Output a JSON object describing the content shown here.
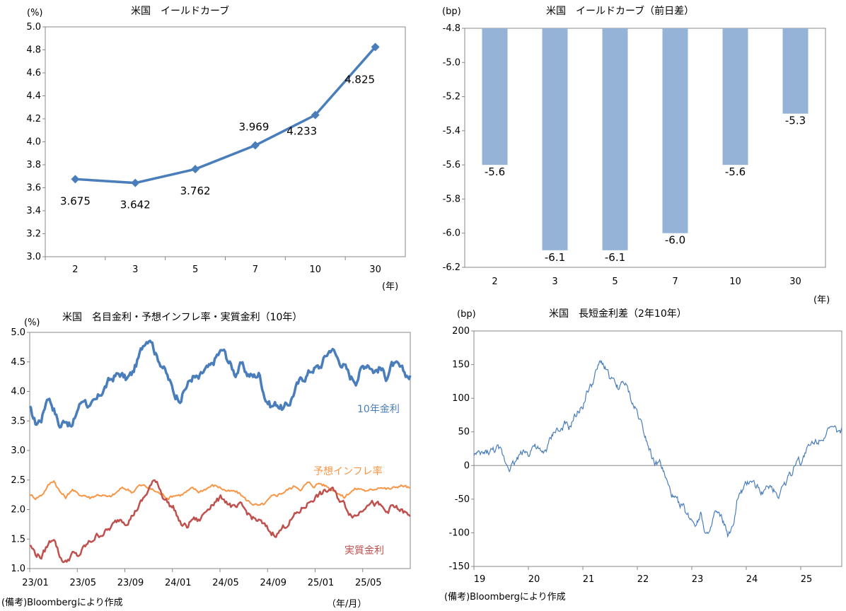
{
  "chart_data": [
    {
      "id": "yield-curve",
      "type": "line",
      "title": "米国　イールドカーブ",
      "unit_label": "(%)",
      "x_unit_label": "(年)",
      "categories": [
        "2",
        "3",
        "5",
        "7",
        "10",
        "30"
      ],
      "values": [
        3.675,
        3.642,
        3.762,
        3.969,
        4.233,
        4.825
      ],
      "data_labels": [
        "3.675",
        "3.642",
        "3.762",
        "3.969",
        "4.233",
        "4.825"
      ],
      "ylim": [
        3.0,
        5.0
      ],
      "yticks": [
        "3.0",
        "3.2",
        "3.4",
        "3.6",
        "3.8",
        "4.0",
        "4.2",
        "4.4",
        "4.6",
        "4.8",
        "5.0"
      ],
      "color": "#4a7ebb"
    },
    {
      "id": "yield-change",
      "type": "bar",
      "title": "米国　イールドカーブ（前日差）",
      "unit_label": "(bp)",
      "x_unit_label": "(年)",
      "categories": [
        "2",
        "3",
        "5",
        "7",
        "10",
        "30"
      ],
      "values": [
        -5.6,
        -6.1,
        -6.1,
        -6.0,
        -5.6,
        -5.3
      ],
      "data_labels": [
        "-5.6",
        "-6.1",
        "-6.1",
        "-6.0",
        "-5.6",
        "-5.3"
      ],
      "ylim": [
        -6.2,
        -4.8
      ],
      "yticks": [
        "-6.2",
        "-6.0",
        "-5.8",
        "-5.6",
        "-5.4",
        "-5.2",
        "-5.0",
        "-4.8"
      ],
      "color": "#95b3d7"
    },
    {
      "id": "rates-10y",
      "type": "line",
      "title": "米国　名目金利・予想インフレ率・実質金利（10年）",
      "unit_label": "(%)",
      "x_unit_label": "（年/月）",
      "xticks": [
        "23/01",
        "23/05",
        "23/09",
        "24/01",
        "24/05",
        "24/09",
        "25/01",
        "25/05"
      ],
      "ylim": [
        1.0,
        5.0
      ],
      "yticks": [
        "1.0",
        "1.5",
        "2.0",
        "2.5",
        "3.0",
        "3.5",
        "4.0",
        "4.5",
        "5.0"
      ],
      "series": [
        {
          "name": "10年金利",
          "color": "#4a7ebb",
          "anchors": [
            3.7,
            3.45,
            3.55,
            3.95,
            3.72,
            3.4,
            3.55,
            3.38,
            3.72,
            3.9,
            3.72,
            3.82,
            4.0,
            4.15,
            4.25,
            4.3,
            4.2,
            4.3,
            4.55,
            4.85,
            4.95,
            4.6,
            4.45,
            4.2,
            3.95,
            3.9,
            4.1,
            4.25,
            4.2,
            4.35,
            4.4,
            4.6,
            4.7,
            4.5,
            4.3,
            4.45,
            4.3,
            4.25,
            4.3,
            3.9,
            3.75,
            3.8,
            3.7,
            3.8,
            4.05,
            4.2,
            4.3,
            4.4,
            4.4,
            4.6,
            4.75,
            4.55,
            4.45,
            4.25,
            4.2,
            4.4,
            4.5,
            4.35,
            4.4,
            4.25,
            4.45,
            4.4,
            4.3,
            4.25
          ]
        },
        {
          "name": "予想インフレ率",
          "color": "#f79646",
          "anchors": [
            2.25,
            2.2,
            2.25,
            2.4,
            2.5,
            2.3,
            2.2,
            2.35,
            2.25,
            2.25,
            2.2,
            2.25,
            2.25,
            2.2,
            2.25,
            2.35,
            2.35,
            2.3,
            2.4,
            2.4,
            2.35,
            2.3,
            2.25,
            2.2,
            2.25,
            2.25,
            2.3,
            2.35,
            2.3,
            2.35,
            2.4,
            2.4,
            2.35,
            2.3,
            2.3,
            2.25,
            2.15,
            2.1,
            2.05,
            2.1,
            2.2,
            2.25,
            2.3,
            2.35,
            2.4,
            2.35,
            2.45,
            2.4,
            2.45,
            2.4,
            2.35,
            2.3,
            2.2,
            2.3,
            2.35,
            2.35,
            2.3,
            2.35,
            2.4,
            2.35,
            2.35,
            2.4,
            2.4,
            2.35
          ]
        },
        {
          "name": "実質金利",
          "color": "#c0504d",
          "anchors": [
            1.4,
            1.25,
            1.2,
            1.4,
            1.55,
            1.2,
            1.1,
            1.25,
            1.2,
            1.35,
            1.45,
            1.55,
            1.6,
            1.65,
            1.75,
            1.85,
            1.8,
            1.9,
            2.05,
            2.2,
            2.4,
            2.5,
            2.25,
            2.1,
            2.0,
            1.75,
            1.7,
            1.85,
            1.8,
            1.95,
            2.1,
            2.15,
            2.2,
            2.1,
            2.0,
            2.05,
            1.95,
            1.85,
            1.8,
            1.7,
            1.6,
            1.6,
            1.7,
            1.8,
            1.9,
            2.0,
            2.1,
            2.2,
            2.25,
            2.3,
            2.35,
            2.2,
            2.1,
            1.95,
            1.9,
            2.0,
            2.15,
            2.1,
            2.05,
            1.95,
            2.05,
            2.0,
            1.95,
            1.85
          ]
        }
      ]
    },
    {
      "id": "spread-2y10y",
      "type": "line",
      "title": "米国　長短金利差（2年10年）",
      "unit_label": "(bp)",
      "xticks": [
        "19",
        "20",
        "21",
        "22",
        "23",
        "24",
        "25"
      ],
      "ylim": [
        -150,
        200
      ],
      "yticks": [
        "-150",
        "-100",
        "-50",
        "0",
        "50",
        "100",
        "150",
        "200"
      ],
      "series": [
        {
          "name": "2年10年",
          "color": "#4a7ebb",
          "anchors": [
            18,
            15,
            17,
            20,
            22,
            25,
            20,
            5,
            -2,
            5,
            15,
            22,
            18,
            30,
            25,
            15,
            25,
            40,
            55,
            50,
            60,
            55,
            70,
            80,
            90,
            110,
            120,
            140,
            155,
            145,
            130,
            120,
            115,
            125,
            110,
            90,
            80,
            60,
            40,
            20,
            0,
            5,
            -15,
            -35,
            -50,
            -55,
            -60,
            -75,
            -80,
            -85,
            -70,
            -100,
            -105,
            -70,
            -75,
            -85,
            -105,
            -95,
            -50,
            -40,
            -30,
            -20,
            -30,
            -35,
            -40,
            -30,
            -35,
            -45,
            -30,
            -20,
            -10,
            10,
            5,
            20,
            30,
            35,
            40,
            45,
            50,
            55,
            50,
            52
          ]
        }
      ]
    }
  ],
  "footer": {
    "source_left": "(備考)Bloombergにより作成",
    "source_right": "(備考)Bloombergにより作成"
  }
}
